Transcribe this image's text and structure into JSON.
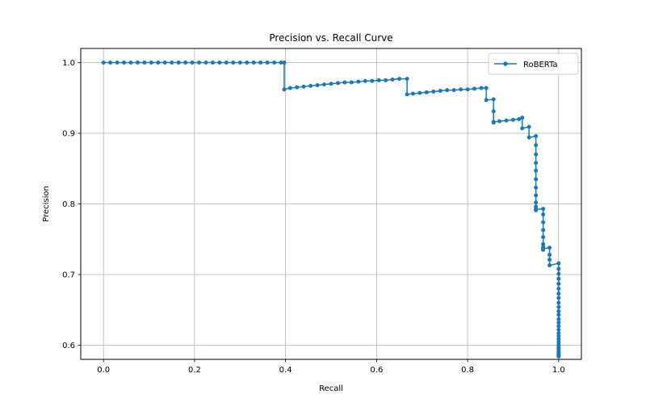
{
  "chart_data": {
    "type": "line",
    "title": "Precision vs. Recall Curve",
    "xlabel": "Recall",
    "ylabel": "Precision",
    "xlim": [
      -0.05,
      1.05
    ],
    "ylim": [
      0.58,
      1.02
    ],
    "xticks": [
      0.0,
      0.2,
      0.4,
      0.6,
      0.8,
      1.0
    ],
    "xtick_labels": [
      "0.0",
      "0.2",
      "0.4",
      "0.6",
      "0.8",
      "1.0"
    ],
    "yticks": [
      0.6,
      0.7,
      0.8,
      0.9,
      1.0
    ],
    "ytick_labels": [
      "0.6",
      "0.7",
      "0.8",
      "0.9",
      "1.0"
    ],
    "grid": true,
    "legend_position": "top-right",
    "colors": {
      "series": "#1f77b4",
      "grid": "#b0b0b0",
      "axis": "#000000"
    },
    "series": [
      {
        "name": "RoBERTa",
        "marker": "circle",
        "x": [
          0.0,
          0.015,
          0.03,
          0.045,
          0.06,
          0.075,
          0.09,
          0.105,
          0.12,
          0.135,
          0.15,
          0.165,
          0.18,
          0.195,
          0.21,
          0.225,
          0.24,
          0.255,
          0.27,
          0.285,
          0.3,
          0.315,
          0.33,
          0.345,
          0.36,
          0.375,
          0.39,
          0.397,
          0.397,
          0.41,
          0.425,
          0.44,
          0.455,
          0.47,
          0.485,
          0.5,
          0.515,
          0.53,
          0.545,
          0.56,
          0.575,
          0.59,
          0.605,
          0.62,
          0.635,
          0.65,
          0.667,
          0.667,
          0.68,
          0.695,
          0.71,
          0.725,
          0.74,
          0.755,
          0.77,
          0.785,
          0.8,
          0.815,
          0.83,
          0.841,
          0.841,
          0.857,
          0.857,
          0.857,
          0.857,
          0.87,
          0.885,
          0.9,
          0.913,
          0.92,
          0.92,
          0.935,
          0.935,
          0.95,
          0.95,
          0.95,
          0.95,
          0.95,
          0.95,
          0.95,
          0.95,
          0.95,
          0.95,
          0.95,
          0.95,
          0.966,
          0.966,
          0.966,
          0.966,
          0.966,
          0.966,
          0.966,
          0.966,
          0.966,
          0.98,
          0.98,
          0.98,
          0.98,
          1.0,
          1.0,
          1.0,
          1.0,
          1.0,
          1.0,
          1.0,
          1.0,
          1.0,
          1.0,
          1.0,
          1.0,
          1.0,
          1.0,
          1.0,
          1.0,
          1.0,
          1.0,
          1.0,
          1.0,
          1.0,
          1.0,
          1.0,
          1.0,
          1.0,
          1.0,
          1.0,
          1.0,
          1.0,
          1.0
        ],
        "y": [
          1.0,
          1.0,
          1.0,
          1.0,
          1.0,
          1.0,
          1.0,
          1.0,
          1.0,
          1.0,
          1.0,
          1.0,
          1.0,
          1.0,
          1.0,
          1.0,
          1.0,
          1.0,
          1.0,
          1.0,
          1.0,
          1.0,
          1.0,
          1.0,
          1.0,
          1.0,
          1.0,
          1.0,
          0.962,
          0.964,
          0.965,
          0.966,
          0.967,
          0.968,
          0.969,
          0.97,
          0.971,
          0.972,
          0.972,
          0.973,
          0.974,
          0.974,
          0.975,
          0.975,
          0.976,
          0.977,
          0.977,
          0.955,
          0.956,
          0.957,
          0.958,
          0.959,
          0.96,
          0.961,
          0.961,
          0.962,
          0.962,
          0.963,
          0.964,
          0.964,
          0.947,
          0.948,
          0.931,
          0.915,
          0.916,
          0.917,
          0.918,
          0.919,
          0.92,
          0.922,
          0.907,
          0.909,
          0.894,
          0.896,
          0.883,
          0.87,
          0.858,
          0.847,
          0.835,
          0.823,
          0.812,
          0.802,
          0.796,
          0.791,
          0.792,
          0.793,
          0.785,
          0.774,
          0.763,
          0.753,
          0.743,
          0.739,
          0.735,
          0.737,
          0.738,
          0.728,
          0.721,
          0.713,
          0.716,
          0.708,
          0.701,
          0.694,
          0.687,
          0.68,
          0.673,
          0.667,
          0.66,
          0.654,
          0.648,
          0.643,
          0.637,
          0.632,
          0.627,
          0.622,
          0.617,
          0.613,
          0.609,
          0.605,
          0.601,
          0.598,
          0.595,
          0.592,
          0.59,
          0.588,
          0.587,
          0.586,
          0.585,
          0.584
        ]
      }
    ]
  }
}
